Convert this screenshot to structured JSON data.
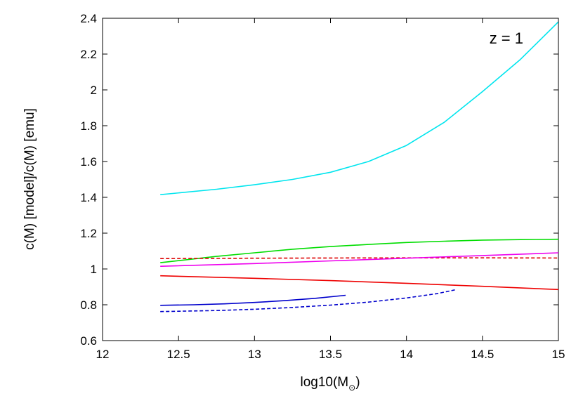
{
  "chart_data": {
    "type": "line",
    "title": "",
    "annotation": "z = 1",
    "xlabel": "log10(M",
    "xlabel_symbol": "⊙",
    "xlabel_close": ")",
    "ylabel": "c(M) [model]/c(M) [emu]",
    "xlim": [
      12,
      15
    ],
    "ylim": [
      0.6,
      2.4
    ],
    "xticks": [
      "12",
      "12.5",
      "13",
      "13.5",
      "14",
      "14.5",
      "15"
    ],
    "yticks": [
      "0.6",
      "0.8",
      "1",
      "1.2",
      "1.4",
      "1.6",
      "1.8",
      "2",
      "2.2",
      "2.4"
    ],
    "grid": false,
    "legend": "none",
    "series": [
      {
        "color": "#00e5ee",
        "dash": false,
        "x": [
          12.38,
          12.75,
          13.0,
          13.25,
          13.5,
          13.75,
          14.0,
          14.25,
          14.5,
          14.75,
          15.0
        ],
        "y": [
          1.415,
          1.445,
          1.47,
          1.5,
          1.54,
          1.6,
          1.69,
          1.82,
          1.99,
          2.17,
          2.38
        ]
      },
      {
        "color": "#00dd00",
        "dash": false,
        "x": [
          12.38,
          12.75,
          13.0,
          13.25,
          13.5,
          13.75,
          14.0,
          14.25,
          14.5,
          14.75,
          15.0
        ],
        "y": [
          1.035,
          1.07,
          1.09,
          1.11,
          1.125,
          1.137,
          1.148,
          1.155,
          1.161,
          1.164,
          1.166
        ]
      },
      {
        "color": "#dd0000",
        "dash": true,
        "x": [
          12.38,
          13.0,
          13.5,
          14.0,
          14.5,
          15.0
        ],
        "y": [
          1.058,
          1.06,
          1.061,
          1.062,
          1.062,
          1.061
        ]
      },
      {
        "color": "#ee00ee",
        "dash": false,
        "x": [
          12.38,
          13.0,
          13.5,
          14.0,
          14.5,
          15.0
        ],
        "y": [
          1.015,
          1.03,
          1.045,
          1.06,
          1.075,
          1.09
        ]
      },
      {
        "color": "#ee0000",
        "dash": false,
        "x": [
          12.38,
          13.0,
          13.5,
          14.0,
          14.5,
          15.0
        ],
        "y": [
          0.962,
          0.948,
          0.935,
          0.92,
          0.903,
          0.885
        ]
      },
      {
        "color": "#0000cc",
        "dash": false,
        "x": [
          12.38,
          12.6,
          12.8,
          13.0,
          13.2,
          13.4,
          13.6
        ],
        "y": [
          0.797,
          0.8,
          0.805,
          0.813,
          0.823,
          0.836,
          0.853
        ]
      },
      {
        "color": "#0000cc",
        "dash": true,
        "x": [
          12.38,
          12.75,
          13.0,
          13.25,
          13.5,
          13.75,
          14.0,
          14.2,
          14.33
        ],
        "y": [
          0.762,
          0.768,
          0.775,
          0.785,
          0.798,
          0.815,
          0.838,
          0.862,
          0.885
        ]
      }
    ]
  }
}
